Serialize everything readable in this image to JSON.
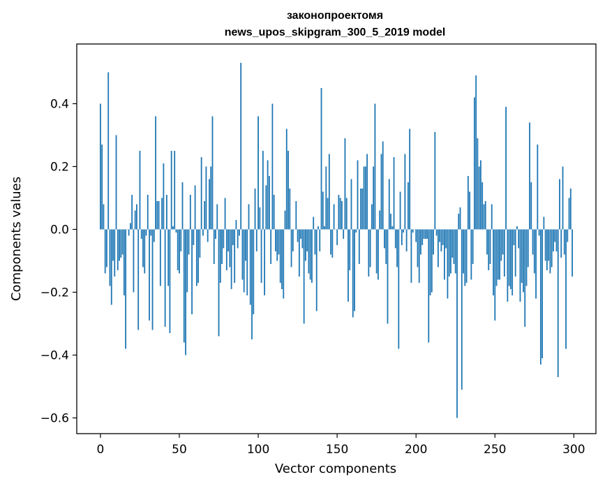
{
  "chart_data": {
    "type": "bar",
    "title_lines": [
      "законопроектомя",
      "news_upos_skipgram_300_5_2019 model"
    ],
    "xlabel": "Vector components",
    "ylabel": "Components values",
    "xlim": [
      -15,
      314
    ],
    "ylim": [
      -0.65,
      0.59
    ],
    "x_ticks": [
      0,
      50,
      100,
      150,
      200,
      250,
      300
    ],
    "x_tick_labels": [
      "0",
      "50",
      "100",
      "150",
      "200",
      "250",
      "300"
    ],
    "y_ticks": [
      -0.6,
      -0.4,
      -0.2,
      0.0,
      0.2,
      0.4
    ],
    "y_tick_labels": [
      "−0.6",
      "−0.4",
      "−0.2",
      "0.0",
      "0.2",
      "0.4"
    ],
    "bar_color": "#1f77b4",
    "values": [
      0.4,
      0.27,
      0.08,
      -0.14,
      -0.12,
      0.5,
      -0.18,
      -0.24,
      -0.1,
      -0.15,
      0.3,
      -0.13,
      -0.1,
      -0.09,
      -0.08,
      -0.21,
      -0.38,
      0.0,
      -0.02,
      0.02,
      0.11,
      -0.2,
      0.06,
      0.08,
      -0.32,
      0.25,
      -0.03,
      -0.12,
      -0.14,
      -0.02,
      0.11,
      -0.29,
      -0.02,
      -0.32,
      -0.04,
      0.36,
      0.09,
      0.09,
      -0.18,
      0.1,
      0.21,
      -0.31,
      0.11,
      -0.18,
      -0.33,
      0.25,
      0.01,
      0.25,
      -0.01,
      -0.13,
      -0.14,
      -0.07,
      0.15,
      -0.36,
      -0.4,
      -0.2,
      -0.08,
      0.11,
      -0.27,
      -0.05,
      0.14,
      -0.18,
      -0.17,
      -0.09,
      0.23,
      -0.02,
      0.09,
      0.2,
      -0.04,
      0.16,
      0.2,
      0.36,
      -0.11,
      -0.03,
      0.08,
      -0.34,
      -0.17,
      -0.11,
      -0.06,
      0.1,
      -0.13,
      -0.07,
      -0.12,
      -0.19,
      -0.05,
      -0.17,
      0.03,
      -0.06,
      -0.02,
      0.53,
      -0.16,
      -0.2,
      -0.1,
      -0.21,
      0.08,
      -0.24,
      -0.35,
      -0.27,
      0.13,
      -0.07,
      0.36,
      0.07,
      -0.17,
      0.25,
      -0.21,
      0.14,
      0.22,
      0.17,
      -0.11,
      0.4,
      0.11,
      -0.07,
      -0.1,
      -0.08,
      -0.17,
      -0.19,
      -0.22,
      0.06,
      0.32,
      0.25,
      0.13,
      -0.12,
      -0.07,
      0.0,
      0.09,
      -0.04,
      -0.15,
      -0.03,
      -0.06,
      -0.3,
      -0.1,
      -0.07,
      -0.14,
      -0.16,
      -0.17,
      0.04,
      -0.08,
      -0.26,
      0.01,
      -0.07,
      0.45,
      0.12,
      0.01,
      0.2,
      0.1,
      0.24,
      -0.08,
      -0.09,
      0.08,
      0.0,
      -0.05,
      0.11,
      0.1,
      0.09,
      -0.03,
      0.29,
      0.1,
      -0.23,
      -0.13,
      0.16,
      -0.28,
      -0.26,
      -0.01,
      0.22,
      -0.11,
      0.13,
      0.13,
      0.2,
      0.2,
      0.24,
      -0.15,
      -0.12,
      0.08,
      0.2,
      0.4,
      -0.14,
      -0.16,
      0.06,
      0.24,
      0.28,
      -0.06,
      -0.11,
      -0.3,
      0.16,
      0.05,
      0.01,
      0.23,
      -0.06,
      -0.12,
      -0.38,
      0.12,
      -0.05,
      -0.01,
      0.24,
      -0.07,
      0.15,
      0.32,
      -0.17,
      -0.01,
      0.0,
      -0.04,
      -0.12,
      -0.17,
      -0.08,
      -0.05,
      -0.03,
      -0.03,
      -0.03,
      -0.36,
      -0.21,
      -0.2,
      -0.08,
      0.31,
      -0.02,
      -0.12,
      -0.04,
      -0.07,
      -0.05,
      -0.16,
      -0.06,
      -0.22,
      -0.15,
      -0.14,
      -0.09,
      -0.11,
      -0.14,
      -0.6,
      0.05,
      0.07,
      -0.51,
      -0.14,
      -0.18,
      -0.17,
      0.17,
      0.12,
      -0.16,
      -0.11,
      0.42,
      0.49,
      0.29,
      0.2,
      0.22,
      0.15,
      0.08,
      0.09,
      -0.08,
      -0.13,
      -0.11,
      0.08,
      -0.21,
      -0.29,
      -0.18,
      -0.16,
      -0.16,
      -0.1,
      -0.08,
      -0.15,
      0.39,
      -0.23,
      -0.18,
      -0.19,
      -0.21,
      -0.05,
      -0.15,
      0.01,
      -0.06,
      -0.23,
      -0.17,
      -0.2,
      -0.31,
      -0.18,
      -0.12,
      0.34,
      0.15,
      -0.08,
      -0.14,
      -0.22,
      0.27,
      -0.02,
      -0.43,
      -0.41,
      0.04,
      -0.1,
      -0.13,
      -0.1,
      -0.14,
      -0.12,
      -0.07,
      -0.04,
      -0.07,
      -0.47,
      0.16,
      -0.09,
      0.2,
      -0.08,
      -0.38,
      -0.04,
      0.1,
      0.13,
      -0.15
    ]
  }
}
